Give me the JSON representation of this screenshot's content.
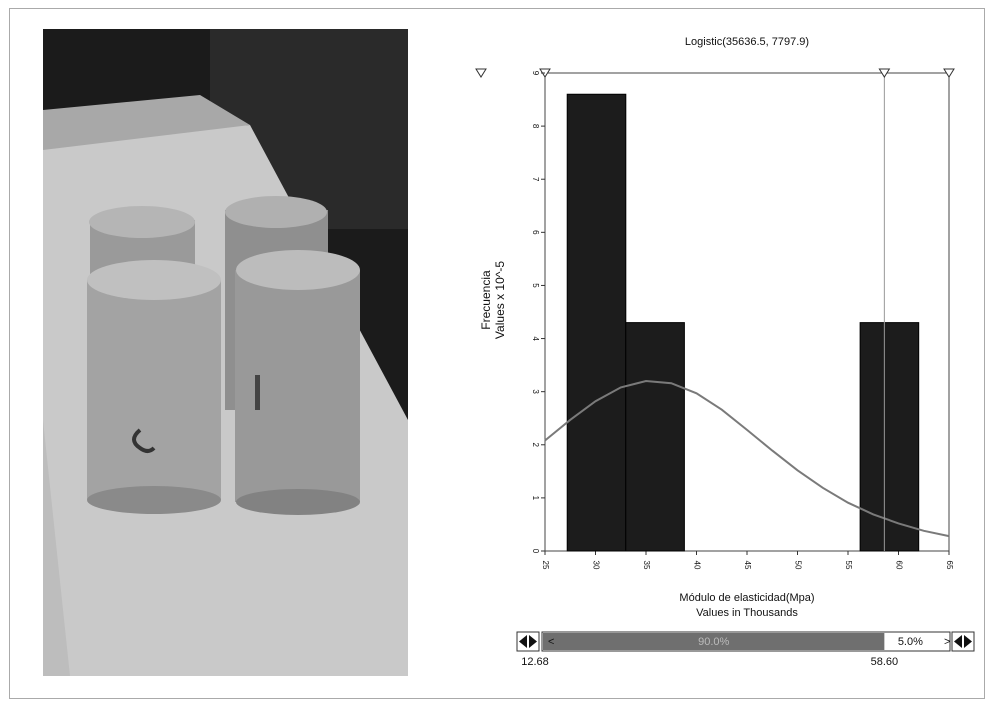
{
  "chart_data": {
    "type": "histogram",
    "title": "Logistic(35636.5, 7797.9)",
    "y_label": [
      "Frecuencia",
      "Values x 10^-5"
    ],
    "x_label": [
      "Módulo de elasticidad(Mpa)",
      "Values in Thousands"
    ],
    "bins": [
      27.2,
      33.0,
      38.8,
      44.6,
      50.4,
      56.2,
      62.0
    ],
    "counts": [
      8.6,
      4.3,
      0,
      0,
      0,
      4.3
    ],
    "color": "#1c1c1c",
    "curve": {
      "color": "#7a7a7a",
      "x": [
        25,
        27.5,
        30,
        32.5,
        35,
        37.5,
        40,
        42.5,
        45,
        47.5,
        50,
        52.5,
        55,
        57.5,
        60,
        62.5,
        65
      ],
      "values": [
        2.08,
        2.47,
        2.82,
        3.08,
        3.2,
        3.16,
        2.97,
        2.66,
        2.28,
        1.89,
        1.52,
        1.19,
        0.91,
        0.69,
        0.52,
        0.38,
        0.28
      ]
    },
    "xlim": [
      25,
      65
    ],
    "xticks": [
      25,
      30,
      35,
      40,
      45,
      50,
      55,
      60,
      65
    ],
    "ylim": [
      0,
      9
    ],
    "yticks": [
      0,
      1,
      2,
      3,
      4,
      5,
      6,
      7,
      8,
      9
    ],
    "delimiter": {
      "left": 12.68,
      "right": {
        "value": 58.6,
        "label": "58.60"
      },
      "percents": [
        90,
        5
      ],
      "percent_labels": [
        "90.0%",
        "5.0%"
      ],
      "left_arrow": "<",
      "right_arrow": ">"
    }
  }
}
